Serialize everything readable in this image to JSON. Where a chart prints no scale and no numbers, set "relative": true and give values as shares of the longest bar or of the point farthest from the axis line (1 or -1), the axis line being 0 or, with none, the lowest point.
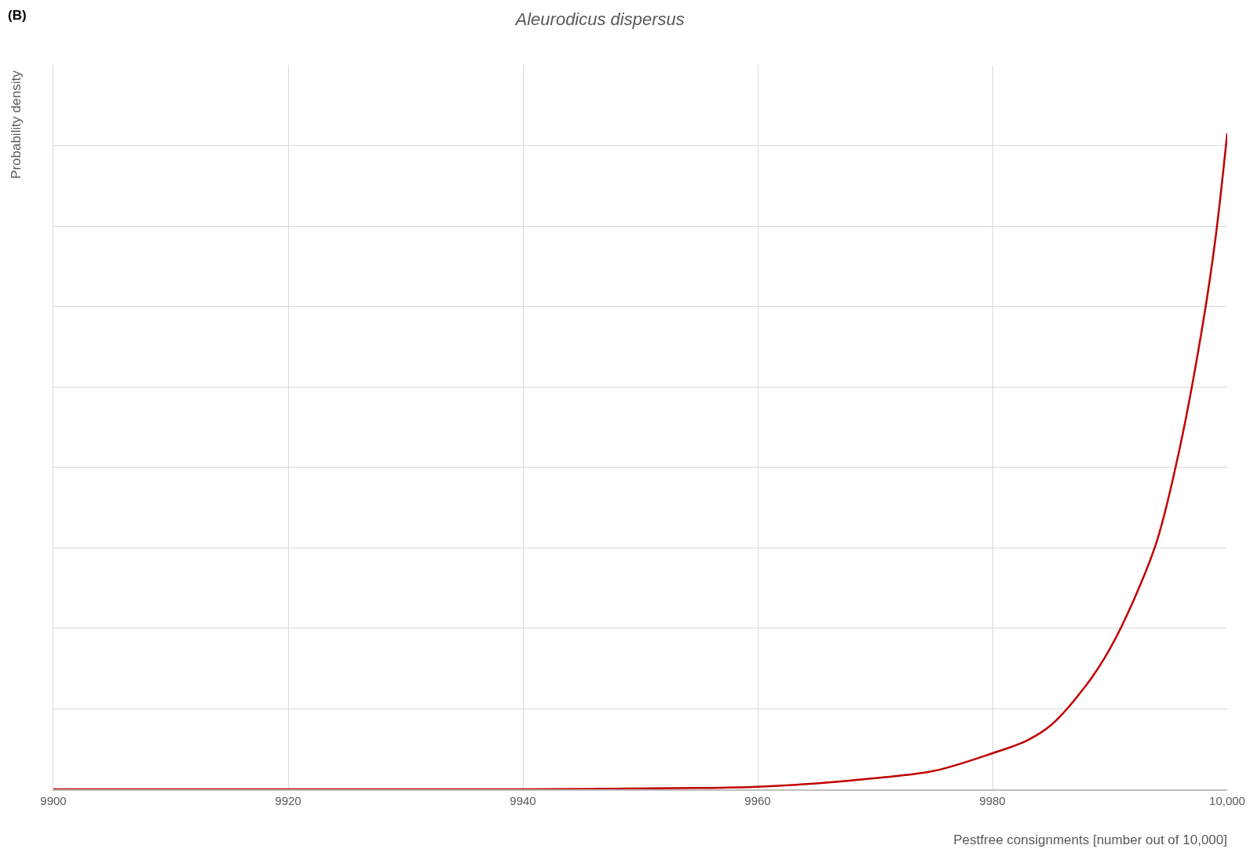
{
  "chart_data": {
    "type": "line",
    "title": "Aleurodicus dispersus",
    "xlabel": "Pestfree consignments [number out of 10,000]",
    "ylabel": "Probability density",
    "annotations": [
      "(B)"
    ],
    "relative": true,
    "x": [
      9900,
      9920,
      9940,
      9948,
      9955,
      9960,
      9965,
      9970,
      9975,
      9980,
      9983,
      9985,
      9988,
      9990,
      9992,
      9994,
      9996,
      9998,
      9999,
      10000
    ],
    "series": [
      {
        "color": "#c00000",
        "values": [
          0,
          0,
          0,
          0.001,
          0.002,
          0.004,
          0.009,
          0.017,
          0.028,
          0.055,
          0.075,
          0.098,
          0.159,
          0.214,
          0.287,
          0.378,
          0.524,
          0.718,
          0.84,
          1
        ]
      }
    ],
    "xlim": [
      9900,
      10000
    ],
    "xticks": [
      9900,
      9920,
      9940,
      9960,
      9980,
      {
        "value": 10000,
        "label": "10,000"
      }
    ],
    "grid": true,
    "marker": "none",
    "line_style": "solid"
  }
}
